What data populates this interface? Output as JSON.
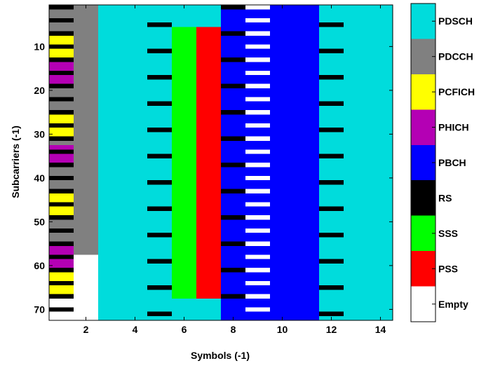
{
  "chart_data": {
    "type": "heatmap",
    "title": "",
    "xlabel": "Symbols (-1)",
    "ylabel": "Subcarriers (-1)",
    "xlim": [
      0.5,
      14.5
    ],
    "ylim": [
      0.5,
      72.5
    ],
    "y_reversed": true,
    "x_ticks": [
      2,
      4,
      6,
      8,
      10,
      12,
      14
    ],
    "y_ticks": [
      10,
      20,
      30,
      40,
      50,
      60,
      70
    ],
    "grid": false,
    "legend_position": "right colorbar",
    "categories": [
      {
        "name": "PDSCH",
        "color": "#00dcdc"
      },
      {
        "name": "PDCCH",
        "color": "#808080"
      },
      {
        "name": "PCFICH",
        "color": "#ffff00"
      },
      {
        "name": "PHICH",
        "color": "#b400b4"
      },
      {
        "name": "PBCH",
        "color": "#0000ff"
      },
      {
        "name": "RS",
        "color": "#000000"
      },
      {
        "name": "SSS",
        "color": "#00ff00"
      },
      {
        "name": "PSS",
        "color": "#ff0000"
      },
      {
        "name": "Empty",
        "color": "#ffffff"
      }
    ],
    "regions": [
      {
        "category": "PDSCH",
        "symbols": [
          1,
          14
        ],
        "subcarriers": [
          1,
          72
        ]
      },
      {
        "category": "PDCCH",
        "symbols": [
          1,
          2
        ],
        "subcarriers": [
          1,
          57
        ]
      },
      {
        "category": "Empty",
        "symbols": [
          1,
          2
        ],
        "subcarriers": [
          58,
          72
        ]
      },
      {
        "category": "PCFICH",
        "symbols": [
          1,
          1
        ],
        "subcarriers": [
          7,
          12
        ]
      },
      {
        "category": "PHICH",
        "symbols": [
          1,
          1
        ],
        "subcarriers": [
          14,
          18
        ]
      },
      {
        "category": "PCFICH",
        "symbols": [
          1,
          1
        ],
        "subcarriers": [
          26,
          31
        ]
      },
      {
        "category": "PHICH",
        "symbols": [
          1,
          1
        ],
        "subcarriers": [
          33,
          36
        ]
      },
      {
        "category": "PCFICH",
        "symbols": [
          1,
          1
        ],
        "subcarriers": [
          44,
          49
        ]
      },
      {
        "category": "PHICH",
        "symbols": [
          1,
          1
        ],
        "subcarriers": [
          56,
          60
        ]
      },
      {
        "category": "PCFICH",
        "symbols": [
          1,
          1
        ],
        "subcarriers": [
          62,
          66
        ]
      },
      {
        "category": "SSS",
        "symbols": [
          6,
          6
        ],
        "subcarriers": [
          6,
          67
        ]
      },
      {
        "category": "PSS",
        "symbols": [
          7,
          7
        ],
        "subcarriers": [
          6,
          67
        ]
      },
      {
        "category": "PBCH",
        "symbols": [
          8,
          11
        ],
        "subcarriers": [
          1,
          72
        ]
      },
      {
        "category": "Empty",
        "symbols": [
          9,
          9
        ],
        "subcarriers": [
          1,
          72
        ],
        "pattern": "every third subcarrier"
      }
    ],
    "rs_pattern": {
      "category": "RS",
      "symbol_1": [
        1,
        7,
        13,
        19,
        25,
        31,
        37,
        43,
        49,
        55,
        61,
        67
      ],
      "symbol_1_extra": [
        4,
        10,
        16,
        22,
        28,
        34,
        40,
        46,
        52,
        58,
        64,
        70
      ],
      "symbol_5": [
        5,
        11,
        17,
        23,
        29,
        35,
        41,
        47,
        53,
        59,
        65,
        71
      ],
      "symbol_8": [
        1,
        7,
        13,
        19,
        25,
        31,
        37,
        43,
        49,
        55,
        61,
        67
      ],
      "symbol_12": [
        5,
        11,
        17,
        23,
        29,
        35,
        41,
        47,
        53,
        59,
        65,
        71
      ]
    }
  }
}
